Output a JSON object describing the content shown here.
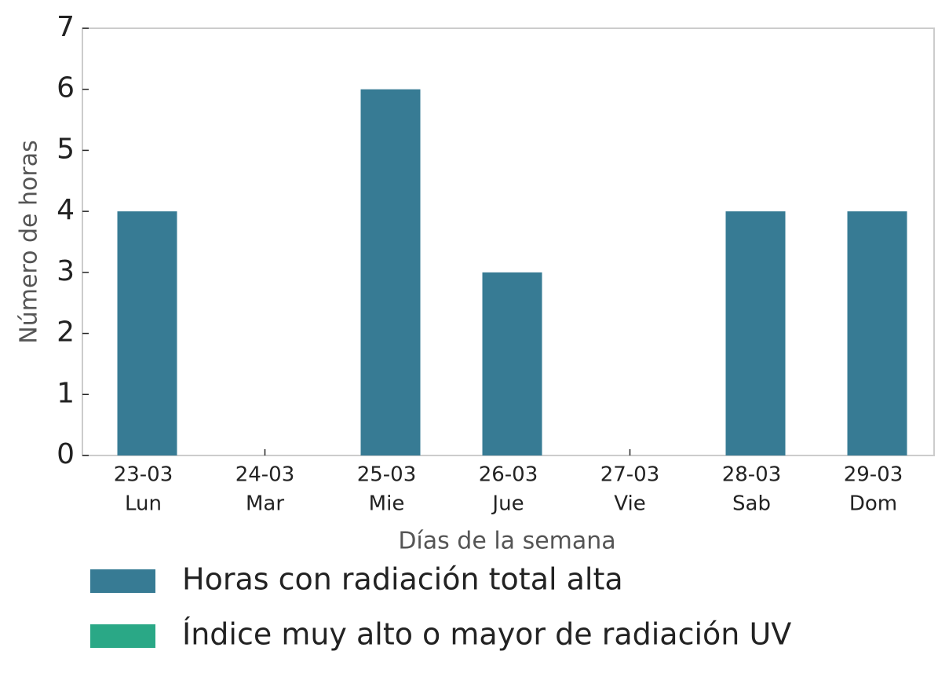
{
  "chart_data": {
    "type": "bar",
    "x_label": "Días de la semana",
    "y_label": "Número de horas",
    "categories": [
      [
        "23-03",
        "Lun"
      ],
      [
        "24-03",
        "Mar"
      ],
      [
        "25-03",
        "Mie"
      ],
      [
        "26-03",
        "Jue"
      ],
      [
        "27-03",
        "Vie"
      ],
      [
        "28-03",
        "Sab"
      ],
      [
        "29-03",
        "Dom"
      ]
    ],
    "series": [
      {
        "name": "Horas con radiación total alta",
        "color": "#377b94",
        "values": [
          4,
          0,
          6,
          3,
          0,
          4,
          4
        ]
      },
      {
        "name": "Índice muy alto o mayor de radiación UV",
        "color": "#2aa886",
        "values": [
          0,
          0,
          0,
          0,
          0,
          0,
          0
        ]
      }
    ],
    "ylim": [
      0,
      7
    ],
    "yticks": [
      0,
      1,
      2,
      3,
      4,
      5,
      6,
      7
    ],
    "grid": false
  }
}
